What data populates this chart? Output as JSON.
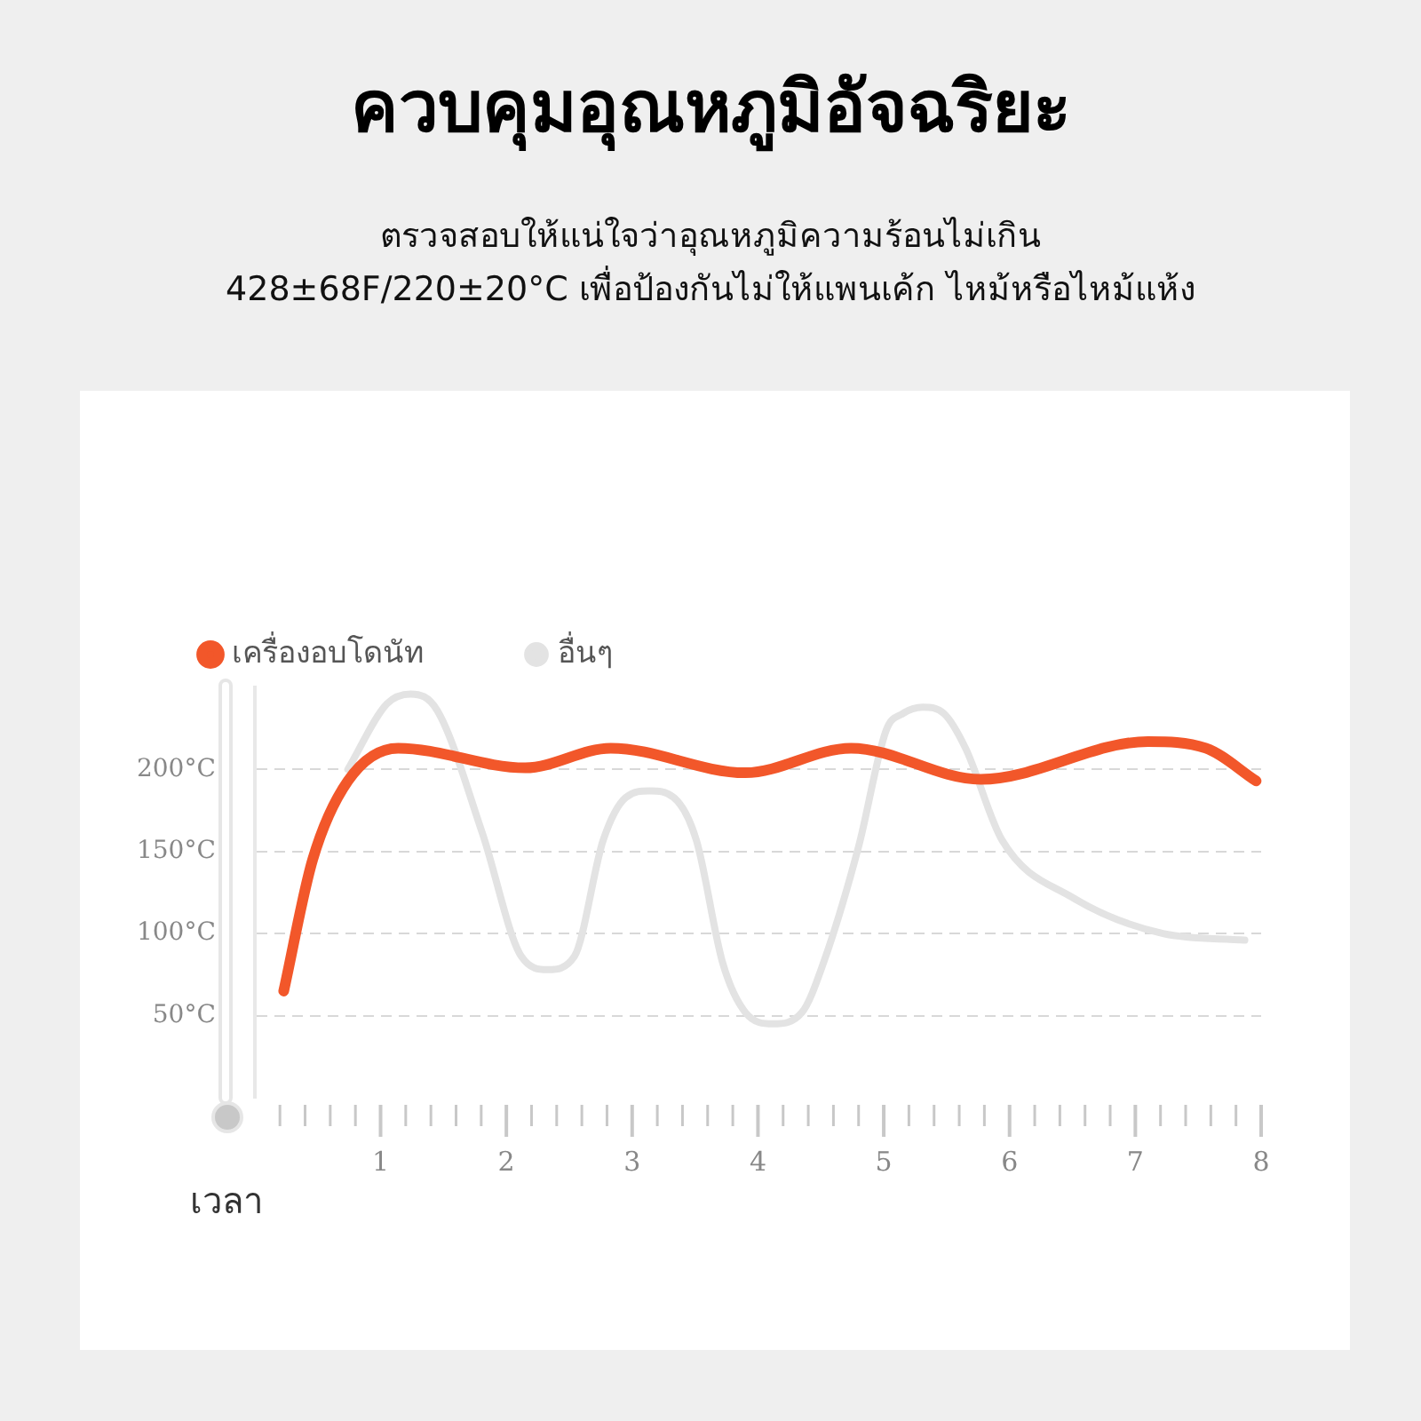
{
  "chart_data": {
    "type": "line",
    "title": "ควบคุมอุณหภูมิอัจฉริยะ",
    "subtitle": "ตรวจสอบให้แน่ใจว่าอุณหภูมิความร้อนไม่เกิน\n428±68F/220±20°C เพื่อป้องกันไม่ให้แพนเค้ก ไหม้หรือไหม้แห้ง",
    "xlabel": "เวลา",
    "series": [
      {
        "name": "เครื่องอบโดนัท",
        "color": "#f2572a",
        "x": [
          0.23,
          0.46,
          0.74,
          1.14,
          2.15,
          2.83,
          3.9,
          4.74,
          5.77,
          7.1,
          7.56,
          7.96
        ],
        "values": [
          65,
          145,
          193,
          213,
          201,
          213,
          198,
          213,
          194,
          217,
          213,
          193
        ]
      },
      {
        "name": "อื่นๆ",
        "color": "#e3e3e3",
        "x": [
          0.74,
          1.05,
          1.24,
          1.45,
          1.81,
          2.12,
          2.33,
          2.54,
          2.77,
          2.95,
          3.14,
          3.33,
          3.51,
          3.72,
          3.9,
          4.12,
          4.35,
          4.52,
          4.8,
          5.02,
          5.15,
          5.31,
          5.48,
          5.65,
          5.94,
          6.5,
          7.22,
          7.87
        ],
        "values": [
          200,
          240,
          246,
          236,
          161,
          86,
          78,
          86,
          157,
          183,
          187,
          183,
          157,
          82,
          52,
          45,
          52,
          82,
          153,
          224,
          234,
          238,
          234,
          213,
          157,
          122,
          100,
          96
        ]
      }
    ],
    "xlim": [
      0,
      8
    ],
    "xticks": [
      {
        "value": 0.2,
        "label": null
      },
      {
        "value": 0.4,
        "label": null
      },
      {
        "value": 0.6,
        "label": null
      },
      {
        "value": 0.8,
        "label": null
      },
      1,
      {
        "value": 1.2,
        "label": null
      },
      {
        "value": 1.4,
        "label": null
      },
      {
        "value": 1.6,
        "label": null
      },
      {
        "value": 1.8,
        "label": null
      },
      2,
      {
        "value": 2.2,
        "label": null
      },
      {
        "value": 2.4,
        "label": null
      },
      {
        "value": 2.6,
        "label": null
      },
      {
        "value": 2.8,
        "label": null
      },
      3,
      {
        "value": 3.2,
        "label": null
      },
      {
        "value": 3.4,
        "label": null
      },
      {
        "value": 3.6,
        "label": null
      },
      {
        "value": 3.8,
        "label": null
      },
      4,
      {
        "value": 4.2,
        "label": null
      },
      {
        "value": 4.4,
        "label": null
      },
      {
        "value": 4.6,
        "label": null
      },
      {
        "value": 4.8,
        "label": null
      },
      5,
      {
        "value": 5.2,
        "label": null
      },
      {
        "value": 5.4,
        "label": null
      },
      {
        "value": 5.6,
        "label": null
      },
      {
        "value": 5.8,
        "label": null
      },
      6,
      {
        "value": 6.2,
        "label": null
      },
      {
        "value": 6.4,
        "label": null
      },
      {
        "value": 6.6,
        "label": null
      },
      {
        "value": 6.8,
        "label": null
      },
      7,
      {
        "value": 7.2,
        "label": null
      },
      {
        "value": 7.4,
        "label": null
      },
      {
        "value": 7.6,
        "label": null
      },
      {
        "value": 7.8,
        "label": null
      },
      8
    ],
    "ylim": [
      0,
      250
    ],
    "yticks": [
      {
        "value": 50,
        "label": "50°C"
      },
      {
        "value": 100,
        "label": "100°C"
      },
      {
        "value": 150,
        "label": "150°C"
      },
      {
        "value": 200,
        "label": "200°C"
      }
    ],
    "grid": "y",
    "legend": "top left",
    "marker": "none",
    "line_style": "solid"
  }
}
